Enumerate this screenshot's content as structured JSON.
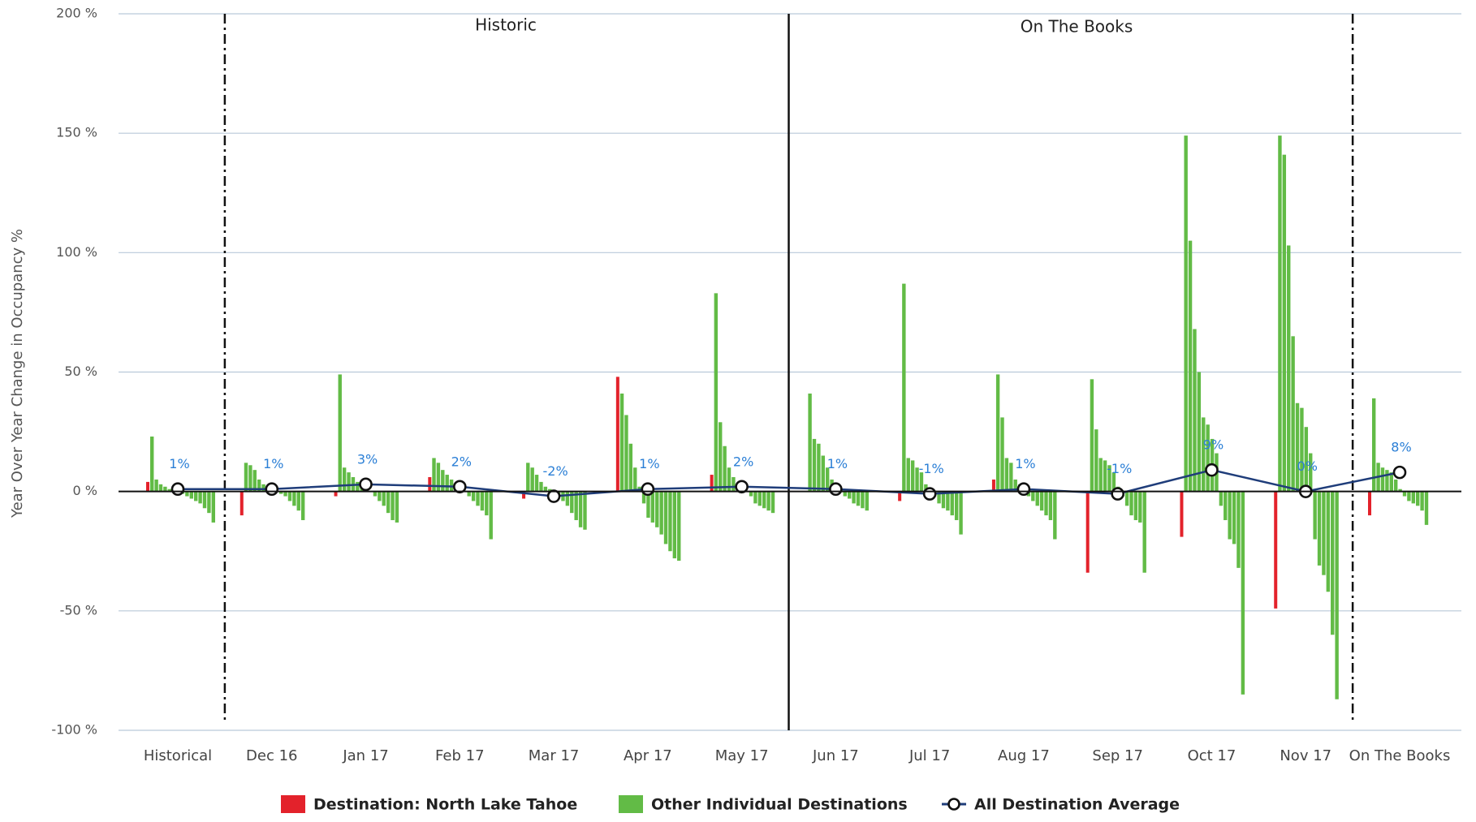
{
  "chart_data": {
    "type": "bar",
    "y_axis_label": "Year Over Year Change in Occupancy %",
    "annotations": [
      "Historic",
      "On The Books"
    ],
    "categories": [
      "Historical",
      "Dec 16",
      "Jan 17",
      "Feb 17",
      "Mar 17",
      "Apr 17",
      "May 17",
      "Jun 17",
      "Jul 17",
      "Aug 17",
      "Sep 17",
      "Oct 17",
      "Nov 17",
      "On The Books"
    ],
    "ylim": [
      -100,
      200
    ],
    "yticks": [
      {
        "value": -100,
        "label": "-100 %"
      },
      {
        "value": -50,
        "label": "-50 %"
      },
      {
        "value": 0,
        "label": "0 %"
      },
      {
        "value": 50,
        "label": "50 %"
      },
      {
        "value": 100,
        "label": "100 %"
      },
      {
        "value": 150,
        "label": "150 %"
      },
      {
        "value": 200,
        "label": "200 %"
      }
    ],
    "grid": true,
    "series": [
      {
        "name": "Destination: North Lake Tahoe",
        "color": "#e3222b",
        "values": [
          4,
          -10,
          -2,
          6,
          -3,
          48,
          7,
          0,
          -4,
          5,
          -34,
          -19,
          -49,
          -10
        ]
      },
      {
        "name": "Other Individual Destinations",
        "color": "#62bb46",
        "values": [
          [
            23,
            5,
            3,
            2,
            1,
            1,
            0,
            -1,
            -2,
            -3,
            -4,
            -5,
            -7,
            -9,
            -13
          ],
          [
            12,
            11,
            9,
            5,
            3,
            2,
            1,
            0,
            -1,
            -2,
            -4,
            -6,
            -8,
            -12
          ],
          [
            49,
            10,
            8,
            6,
            4,
            2,
            1,
            0,
            -2,
            -4,
            -6,
            -9,
            -12,
            -13
          ],
          [
            14,
            12,
            9,
            7,
            5,
            2,
            1,
            0,
            -2,
            -4,
            -6,
            -8,
            -10,
            -20
          ],
          [
            12,
            10,
            7,
            4,
            2,
            1,
            0,
            -2,
            -4,
            -6,
            -9,
            -12,
            -15,
            -16
          ],
          [
            41,
            32,
            20,
            10,
            2,
            -5,
            -11,
            -13,
            -15,
            -18,
            -22,
            -25,
            -28,
            -29
          ],
          [
            83,
            29,
            19,
            10,
            6,
            3,
            1,
            0,
            -2,
            -5,
            -6,
            -7,
            -8,
            -9
          ],
          [
            41,
            22,
            20,
            15,
            10,
            5,
            3,
            1,
            -2,
            -3,
            -5,
            -6,
            -7,
            -8
          ],
          [
            87,
            14,
            13,
            10,
            8,
            3,
            1,
            -2,
            -5,
            -7,
            -8,
            -10,
            -12,
            -18
          ],
          [
            49,
            31,
            14,
            12,
            5,
            3,
            1,
            -2,
            -4,
            -6,
            -8,
            -10,
            -12,
            -20
          ],
          [
            47,
            26,
            14,
            13,
            11,
            8,
            2,
            -2,
            -6,
            -10,
            -12,
            -13,
            -34
          ],
          [
            149,
            105,
            68,
            50,
            31,
            28,
            22,
            16,
            -6,
            -12,
            -20,
            -22,
            -32,
            -85
          ],
          [
            149,
            141,
            103,
            65,
            37,
            35,
            27,
            16,
            -20,
            -31,
            -35,
            -42,
            -60,
            -87
          ],
          [
            39,
            12,
            10,
            9,
            8,
            5,
            1,
            -2,
            -4,
            -5,
            -6,
            -8,
            -14
          ]
        ]
      },
      {
        "name": "All Destination Average",
        "color": "#1f3d7a",
        "type": "line",
        "values": [
          1,
          1,
          3,
          2,
          -2,
          1,
          2,
          1,
          -1,
          1,
          -1,
          9,
          0,
          8
        ],
        "value_labels": [
          "1%",
          "1%",
          "3%",
          "2%",
          "-2%",
          "1%",
          "2%",
          "1%",
          "-1%",
          "1%",
          "-1%",
          "9%",
          "0%",
          "8%"
        ]
      }
    ]
  }
}
